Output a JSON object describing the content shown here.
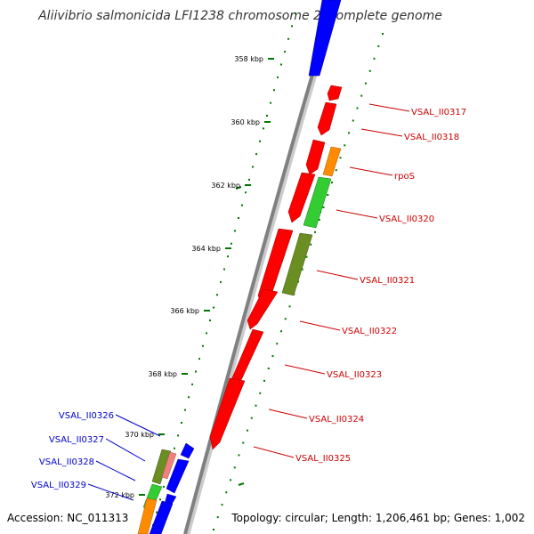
{
  "title": "Aliivibrio salmonicida LFI1238 chromosome 2, complete genome",
  "footer": {
    "accession": "Accession: NC_011313",
    "summary": "Topology: circular; Length: 1,206,461 bp; Genes: 1,002"
  },
  "colors": {
    "forward_default": "#ff0000",
    "reverse_default": "#0000ff",
    "backbone": "#808080",
    "gc_dots": "#007700",
    "forward_label": "#cc0000",
    "reverse_label": "#0000cc"
  },
  "ticks": [
    {
      "label": "358 kbp"
    },
    {
      "label": "360 kbp"
    },
    {
      "label": "362 kbp"
    },
    {
      "label": "364 kbp"
    },
    {
      "label": "366 kbp"
    },
    {
      "label": "368 kbp"
    },
    {
      "label": "370 kbp"
    },
    {
      "label": "372 kbp"
    }
  ],
  "forward_genes": [
    {
      "label": "VSAL_II0317",
      "color": "#ff0000"
    },
    {
      "label": "VSAL_II0318",
      "color": "#ff0000"
    },
    {
      "label": "rpoS",
      "color": "#ff8c00"
    },
    {
      "label": "VSAL_II0320",
      "color": "#33cc33"
    },
    {
      "label": "VSAL_II0321",
      "color": "#6b8e23"
    },
    {
      "label": "VSAL_II0322",
      "color": "#ff0000"
    },
    {
      "label": "VSAL_II0323",
      "color": "#ff0000"
    },
    {
      "label": "VSAL_II0324",
      "color": "#ff0000"
    },
    {
      "label": "VSAL_II0325",
      "color": "#ff0000"
    }
  ],
  "reverse_genes": [
    {
      "label": "VSAL_II0326",
      "color": "#6b8e23"
    },
    {
      "label": "VSAL_II0327",
      "color": "#f08080"
    },
    {
      "label": "VSAL_II0328",
      "color": "#33cc33"
    },
    {
      "label": "VSAL_II0329",
      "color": "#ff8c00"
    }
  ]
}
